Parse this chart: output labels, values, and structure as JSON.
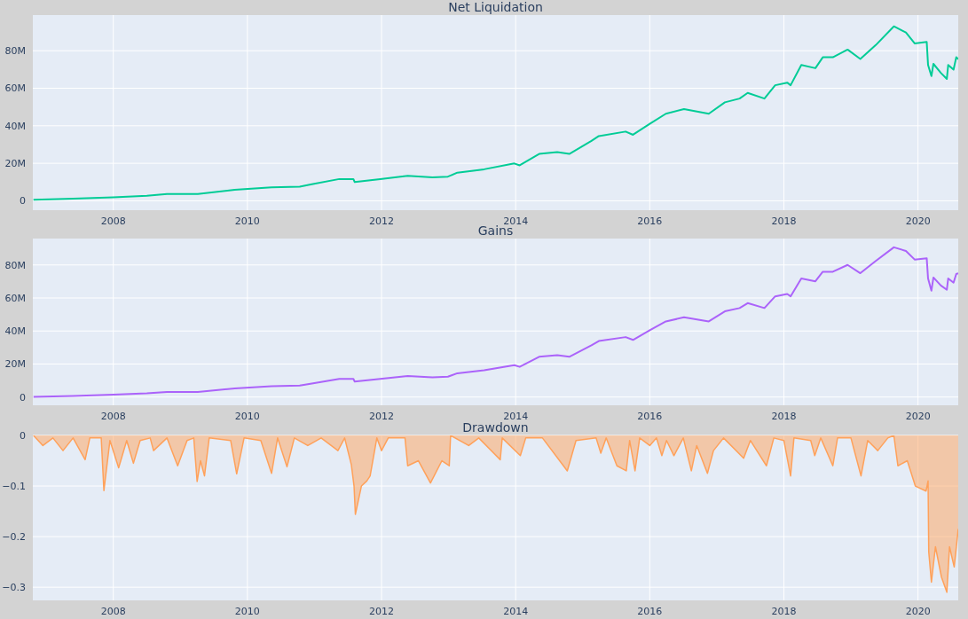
{
  "chart_data": [
    {
      "type": "line",
      "title": "Net Liquidation",
      "grid": true,
      "xlim": [
        2006.8,
        2020.6
      ],
      "xticks": [
        2008,
        2010,
        2012,
        2014,
        2016,
        2018,
        2020
      ],
      "ylim": [
        -5000000,
        99000000
      ],
      "yticks": [
        {
          "value": 0,
          "label": "0"
        },
        {
          "value": 20000000,
          "label": "20M"
        },
        {
          "value": 40000000,
          "label": "40M"
        },
        {
          "value": 60000000,
          "label": "60M"
        },
        {
          "value": 80000000,
          "label": "80M"
        }
      ],
      "series": [
        {
          "color": "#00cc96",
          "x": [
            2006.81,
            2007.4,
            2008.0,
            2008.5,
            2008.8,
            2009.26,
            2009.81,
            2010.36,
            2010.78,
            2010.96,
            2011.37,
            2011.58,
            2011.6,
            2011.98,
            2012.39,
            2012.76,
            2012.99,
            2013.13,
            2013.53,
            2013.98,
            2014.06,
            2014.35,
            2014.62,
            2014.8,
            2015.13,
            2015.24,
            2015.64,
            2015.75,
            2016.0,
            2016.24,
            2016.51,
            2016.88,
            2017.12,
            2017.34,
            2017.46,
            2017.71,
            2017.87,
            2018.05,
            2018.1,
            2018.26,
            2018.47,
            2018.58,
            2018.73,
            2018.95,
            2019.14,
            2019.37,
            2019.64,
            2019.82,
            2019.95,
            2020.13,
            2020.15,
            2020.2,
            2020.23,
            2020.34,
            2020.43,
            2020.45,
            2020.53,
            2020.57,
            2020.6
          ],
          "values": [
            600000,
            1200000,
            1900000,
            2700000,
            3600000,
            3600000,
            5900000,
            7200000,
            7500000,
            8800000,
            11600000,
            11600000,
            10000000,
            11600000,
            13300000,
            12500000,
            12900000,
            15000000,
            16800000,
            19900000,
            18900000,
            25000000,
            26000000,
            25000000,
            31900000,
            34500000,
            36900000,
            35200000,
            41000000,
            46400000,
            48900000,
            46400000,
            52500000,
            54500000,
            57500000,
            54500000,
            61600000,
            63000000,
            61600000,
            72400000,
            70700000,
            76500000,
            76500000,
            80600000,
            75600000,
            83000000,
            93000000,
            89700000,
            83900000,
            84700000,
            72400000,
            66500000,
            73000000,
            68200000,
            65000000,
            72400000,
            69900000,
            76500000,
            75500000
          ]
        }
      ]
    },
    {
      "type": "line",
      "title": "Gains",
      "grid": true,
      "xlim": [
        2006.8,
        2020.6
      ],
      "xticks": [
        2008,
        2010,
        2012,
        2014,
        2016,
        2018,
        2020
      ],
      "ylim": [
        -5000000,
        96000000
      ],
      "yticks": [
        {
          "value": 0,
          "label": "0"
        },
        {
          "value": 20000000,
          "label": "20M"
        },
        {
          "value": 40000000,
          "label": "40M"
        },
        {
          "value": 60000000,
          "label": "60M"
        },
        {
          "value": 80000000,
          "label": "80M"
        }
      ],
      "series": [
        {
          "color": "#ab63fa",
          "x": [
            2006.81,
            2007.4,
            2008.0,
            2008.5,
            2008.8,
            2009.26,
            2009.81,
            2010.36,
            2010.78,
            2010.96,
            2011.37,
            2011.58,
            2011.6,
            2011.98,
            2012.39,
            2012.76,
            2012.99,
            2013.13,
            2013.53,
            2013.98,
            2014.06,
            2014.35,
            2014.62,
            2014.8,
            2015.13,
            2015.24,
            2015.64,
            2015.75,
            2016.0,
            2016.24,
            2016.51,
            2016.88,
            2017.12,
            2017.34,
            2017.46,
            2017.71,
            2017.87,
            2018.05,
            2018.1,
            2018.26,
            2018.47,
            2018.58,
            2018.73,
            2018.95,
            2019.14,
            2019.37,
            2019.64,
            2019.82,
            2019.95,
            2020.13,
            2020.15,
            2020.2,
            2020.23,
            2020.34,
            2020.43,
            2020.45,
            2020.53,
            2020.57,
            2020.6
          ],
          "values": [
            100000,
            700000,
            1400000,
            2200000,
            3100000,
            3100000,
            5200000,
            6600000,
            6900000,
            8200000,
            11000000,
            11000000,
            9400000,
            11000000,
            12700000,
            11900000,
            12300000,
            14400000,
            16200000,
            19300000,
            18300000,
            24400000,
            25400000,
            24400000,
            31300000,
            33900000,
            36300000,
            34600000,
            40400000,
            45800000,
            48300000,
            45800000,
            51900000,
            53900000,
            56900000,
            53900000,
            61000000,
            62400000,
            61000000,
            71800000,
            70100000,
            75900000,
            75900000,
            80000000,
            75000000,
            82400000,
            90700000,
            88500000,
            83300000,
            84100000,
            71800000,
            64400000,
            72400000,
            67600000,
            65000000,
            71800000,
            69300000,
            74500000,
            75000000
          ]
        }
      ]
    },
    {
      "type": "area",
      "title": "Drawdown",
      "grid": true,
      "xlim": [
        2006.8,
        2020.6
      ],
      "xticks": [
        2008,
        2010,
        2012,
        2014,
        2016,
        2018,
        2020
      ],
      "ylim": [
        -0.326,
        0
      ],
      "yticks": [
        {
          "value": 0,
          "label": "0"
        },
        {
          "value": -0.1,
          "label": "−0.1"
        },
        {
          "value": -0.2,
          "label": "−0.2"
        },
        {
          "value": -0.3,
          "label": "−0.3"
        }
      ],
      "series": [
        {
          "color": "#ffa15a",
          "x": [
            2006.81,
            2006.95,
            2007.1,
            2007.25,
            2007.4,
            2007.58,
            2007.65,
            2007.82,
            2007.86,
            2007.95,
            2008.08,
            2008.2,
            2008.3,
            2008.4,
            2008.55,
            2008.6,
            2008.8,
            2008.96,
            2009.1,
            2009.2,
            2009.25,
            2009.3,
            2009.36,
            2009.43,
            2009.75,
            2009.84,
            2009.95,
            2010.2,
            2010.36,
            2010.45,
            2010.59,
            2010.7,
            2010.9,
            2011.1,
            2011.35,
            2011.45,
            2011.55,
            2011.59,
            2011.61,
            2011.7,
            2011.78,
            2011.83,
            2011.93,
            2012.0,
            2012.1,
            2012.35,
            2012.39,
            2012.55,
            2012.73,
            2012.9,
            2013.01,
            2013.03,
            2013.3,
            2013.45,
            2013.77,
            2013.8,
            2014.07,
            2014.15,
            2014.4,
            2014.77,
            2014.9,
            2015.2,
            2015.27,
            2015.35,
            2015.51,
            2015.65,
            2015.7,
            2015.78,
            2015.85,
            2016.0,
            2016.1,
            2016.18,
            2016.25,
            2016.36,
            2016.5,
            2016.62,
            2016.7,
            2016.86,
            2016.95,
            2017.1,
            2017.4,
            2017.5,
            2017.74,
            2017.85,
            2018.0,
            2018.1,
            2018.15,
            2018.4,
            2018.46,
            2018.55,
            2018.73,
            2018.8,
            2019.0,
            2019.15,
            2019.25,
            2019.4,
            2019.55,
            2019.64,
            2019.7,
            2019.84,
            2019.96,
            2020.12,
            2020.15,
            2020.16,
            2020.2,
            2020.26,
            2020.35,
            2020.43,
            2020.47,
            2020.54,
            2020.6
          ],
          "values": [
            0,
            -0.02,
            -0.005,
            -0.03,
            -0.005,
            -0.048,
            -0.005,
            -0.005,
            -0.109,
            -0.01,
            -0.064,
            -0.01,
            -0.055,
            -0.01,
            -0.005,
            -0.03,
            -0.005,
            -0.06,
            -0.01,
            -0.005,
            -0.091,
            -0.05,
            -0.08,
            -0.005,
            -0.01,
            -0.076,
            -0.005,
            -0.01,
            -0.075,
            -0.005,
            -0.062,
            -0.005,
            -0.02,
            -0.005,
            -0.03,
            -0.005,
            -0.058,
            -0.1,
            -0.156,
            -0.1,
            -0.09,
            -0.08,
            -0.005,
            -0.03,
            -0.005,
            -0.005,
            -0.06,
            -0.05,
            -0.094,
            -0.05,
            -0.06,
            0,
            -0.02,
            -0.005,
            -0.048,
            -0.005,
            -0.04,
            -0.005,
            -0.005,
            -0.07,
            -0.01,
            -0.005,
            -0.035,
            -0.005,
            -0.06,
            -0.07,
            -0.01,
            -0.07,
            -0.005,
            -0.02,
            -0.005,
            -0.04,
            -0.01,
            -0.04,
            -0.005,
            -0.07,
            -0.02,
            -0.075,
            -0.03,
            -0.005,
            -0.045,
            -0.01,
            -0.06,
            -0.005,
            -0.01,
            -0.08,
            -0.005,
            -0.01,
            -0.04,
            -0.005,
            -0.06,
            -0.005,
            -0.005,
            -0.08,
            -0.01,
            -0.03,
            -0.005,
            0,
            -0.06,
            -0.05,
            -0.1,
            -0.11,
            -0.09,
            -0.23,
            -0.29,
            -0.22,
            -0.28,
            -0.31,
            -0.22,
            -0.26,
            -0.185
          ]
        }
      ]
    }
  ]
}
